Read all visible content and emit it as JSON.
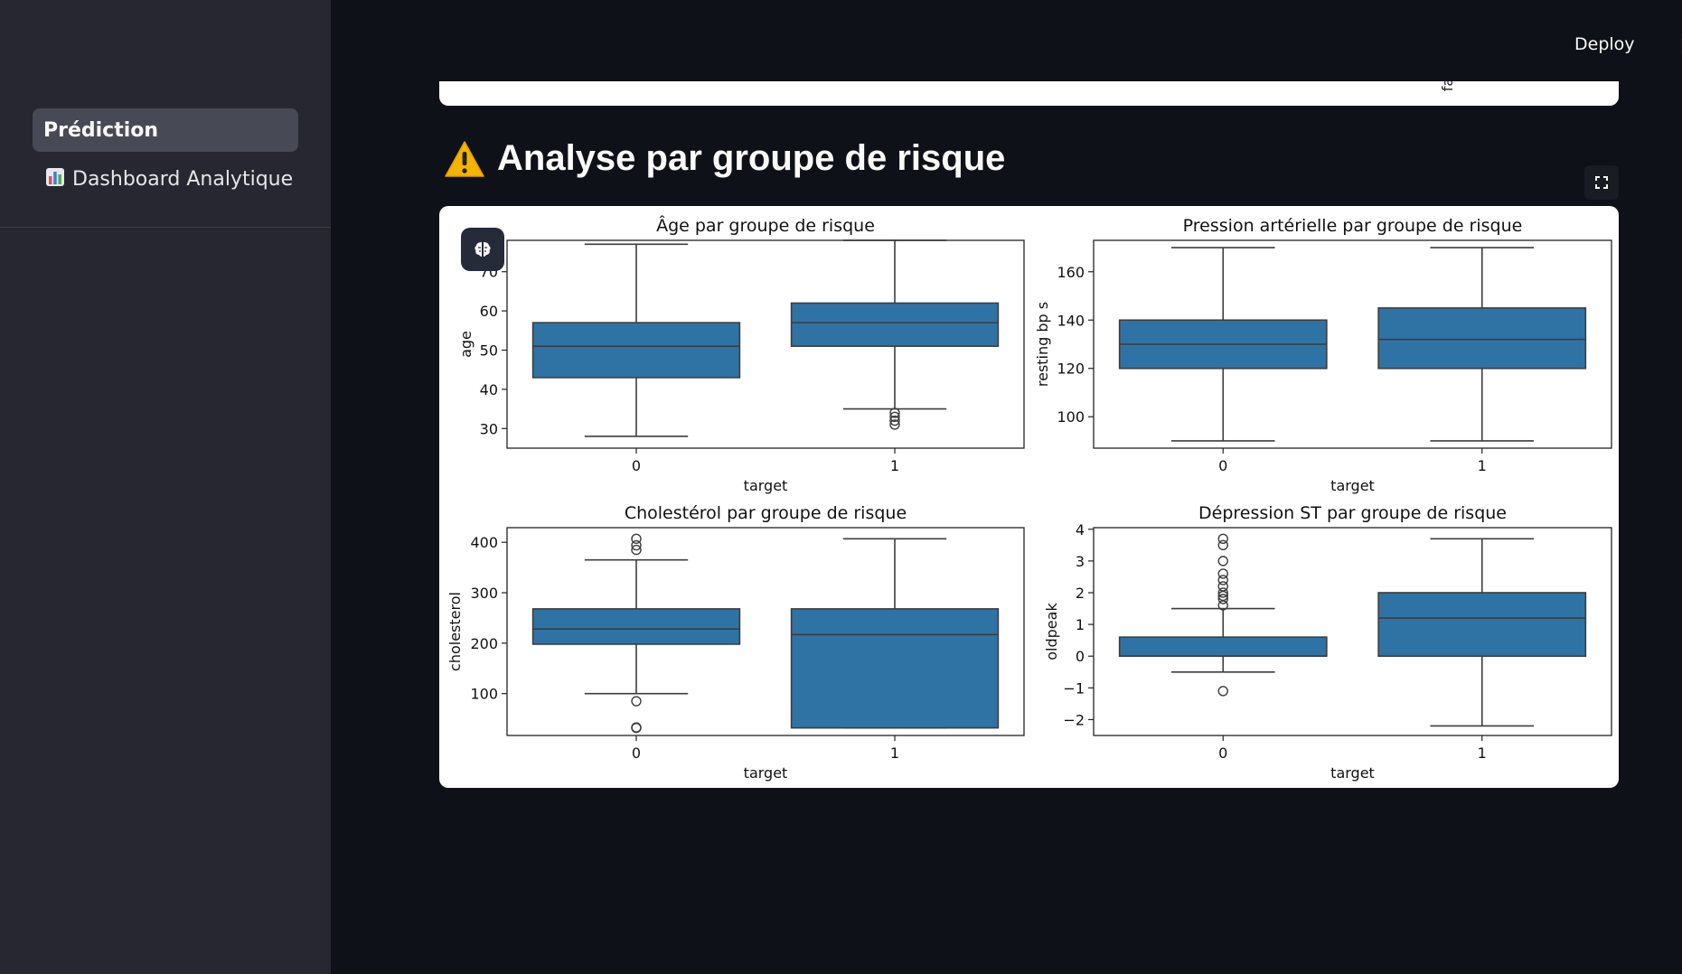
{
  "sidebar": {
    "items": [
      {
        "label": "Prédiction",
        "active": true
      },
      {
        "label": "Dashboard Analytique",
        "icon": "bar-chart-icon",
        "active": false
      }
    ]
  },
  "header": {
    "deploy_label": "Deploy"
  },
  "top_card": {
    "clipped_label": "fa"
  },
  "section": {
    "title": "Analyse par groupe de risque",
    "icon": "warning-icon"
  },
  "colors": {
    "box_fill": "#2f73a5",
    "sidebar_bg": "#262730",
    "main_bg": "#0e1117",
    "active_item_bg": "#474955"
  },
  "chart_data": [
    {
      "type": "box",
      "title": "Âge par groupe de risque",
      "xlabel": "target",
      "ylabel": "age",
      "categories": [
        "0",
        "1"
      ],
      "ylim": [
        25,
        78
      ],
      "yticks": [
        30,
        40,
        50,
        60,
        70
      ],
      "boxes": [
        {
          "whisker_low": 28,
          "q1": 43,
          "median": 51,
          "q3": 57,
          "whisker_high": 77,
          "outliers": []
        },
        {
          "whisker_low": 35,
          "q1": 51,
          "median": 57,
          "q3": 62,
          "whisker_high": 78,
          "outliers": [
            34,
            33,
            32,
            31
          ]
        }
      ]
    },
    {
      "type": "box",
      "title": "Pression artérielle par groupe de risque",
      "xlabel": "target",
      "ylabel": "resting bp s",
      "categories": [
        "0",
        "1"
      ],
      "ylim": [
        87,
        173
      ],
      "yticks": [
        100,
        120,
        140,
        160
      ],
      "boxes": [
        {
          "whisker_low": 90,
          "q1": 120,
          "median": 130,
          "q3": 140,
          "whisker_high": 170,
          "outliers": []
        },
        {
          "whisker_low": 90,
          "q1": 120,
          "median": 132,
          "q3": 145,
          "whisker_high": 170,
          "outliers": []
        }
      ]
    },
    {
      "type": "box",
      "title": "Cholestérol par groupe de risque",
      "xlabel": "target",
      "ylabel": "cholesterol",
      "categories": [
        "0",
        "1"
      ],
      "ylim": [
        17,
        429
      ],
      "yticks": [
        100,
        200,
        300,
        400
      ],
      "boxes": [
        {
          "whisker_low": 100,
          "q1": 198,
          "median": 228,
          "q3": 268,
          "whisker_high": 365,
          "outliers": [
            407,
            394,
            385,
            85,
            33,
            32
          ]
        },
        {
          "whisker_low": 32,
          "q1": 32,
          "median": 217,
          "q3": 268,
          "whisker_high": 407,
          "outliers": []
        }
      ]
    },
    {
      "type": "box",
      "title": "Dépression ST par groupe de risque",
      "xlabel": "target",
      "ylabel": "oldpeak",
      "categories": [
        "0",
        "1"
      ],
      "ylim": [
        -2.5,
        4.05
      ],
      "yticks": [
        -2,
        -1,
        0,
        1,
        2,
        3,
        4
      ],
      "ytick_labels": [
        "−2",
        "−1",
        "0",
        "1",
        "2",
        "3",
        "4"
      ],
      "boxes": [
        {
          "whisker_low": -0.5,
          "q1": 0,
          "median": 0,
          "q3": 0.6,
          "whisker_high": 1.5,
          "outliers": [
            3.7,
            3.5,
            3.0,
            2.6,
            2.4,
            2.2,
            2.0,
            1.9,
            1.8,
            1.6,
            -1.1
          ]
        },
        {
          "whisker_low": -2.2,
          "q1": 0,
          "median": 1.2,
          "q3": 2.0,
          "whisker_high": 3.7,
          "outliers": []
        }
      ]
    }
  ]
}
